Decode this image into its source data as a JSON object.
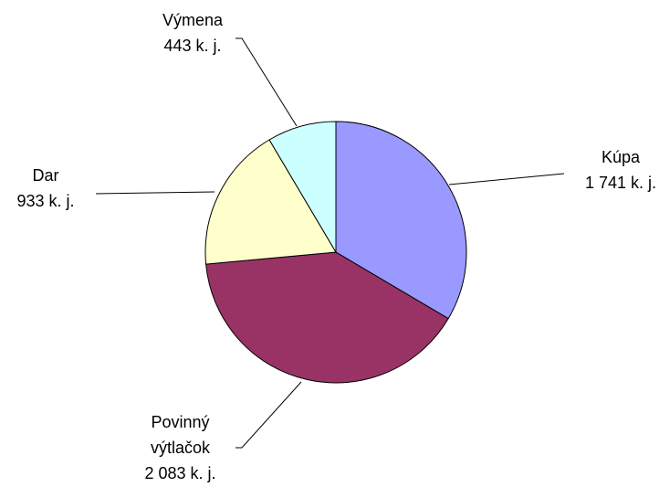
{
  "chart_data": {
    "type": "pie",
    "categories": [
      "Kúpa",
      "Povinný výtlačok",
      "Dar",
      "Výmena"
    ],
    "values": [
      1741,
      2083,
      933,
      443
    ],
    "value_labels": [
      "1 741 k. j.",
      "2 083 k. j.",
      "933 k. j.",
      "443 k. j."
    ],
    "colors": [
      "#9999ff",
      "#993366",
      "#ffffcc",
      "#ccffff"
    ]
  }
}
